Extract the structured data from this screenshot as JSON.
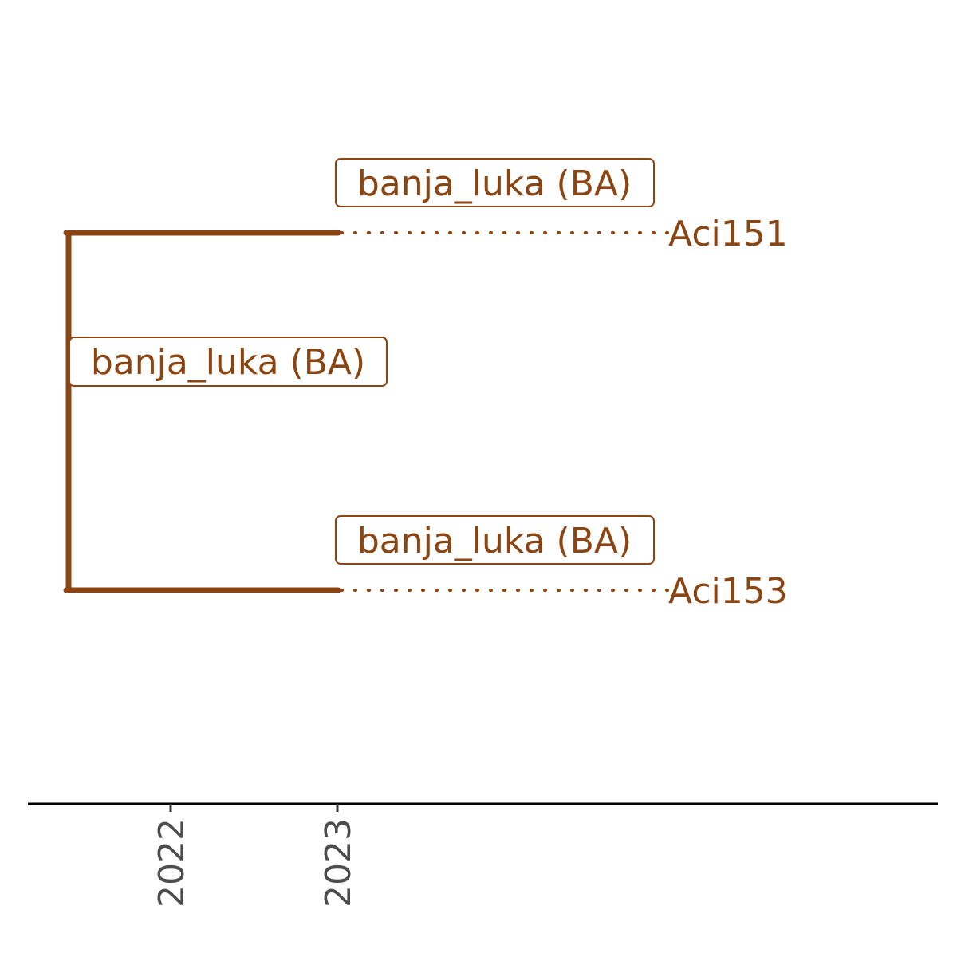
{
  "colors": {
    "branch": "#8B4513",
    "axis": "#000000",
    "tick_text": "#4d4d4d",
    "label_fill": "#ffffff"
  },
  "chart_data": {
    "type": "phylogenetic-tree",
    "x_axis": {
      "ticks": [
        "2022",
        "2023"
      ],
      "tick_label_orientation": "vertical"
    },
    "internal_nodes": [
      {
        "id": "root",
        "location": "banja_luka (BA)"
      }
    ],
    "tips": [
      {
        "name": "Aci151",
        "location": "banja_luka (BA)",
        "year": 2023
      },
      {
        "name": "Aci153",
        "location": "banja_luka (BA)",
        "year": 2023
      }
    ],
    "tip_label_connector": "dotted"
  }
}
